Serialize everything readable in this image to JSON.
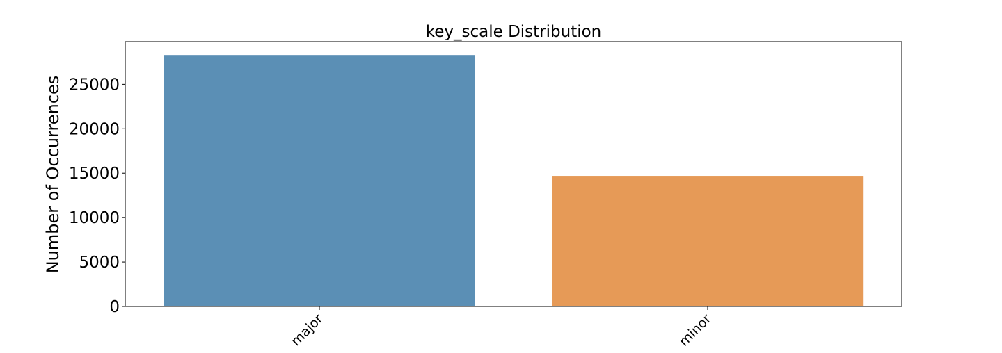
{
  "chart_data": {
    "type": "bar",
    "title": "key_scale Distribution",
    "xlabel": "",
    "ylabel": "Number of Occurrences",
    "categories": [
      "major",
      "minor"
    ],
    "values": [
      28300,
      14700
    ],
    "colors": [
      "#5b8fb5",
      "#e69a57"
    ],
    "ylim": [
      0,
      29800
    ],
    "yticks": [
      0,
      5000,
      10000,
      15000,
      20000,
      25000
    ],
    "grid": false,
    "legend": "none"
  }
}
